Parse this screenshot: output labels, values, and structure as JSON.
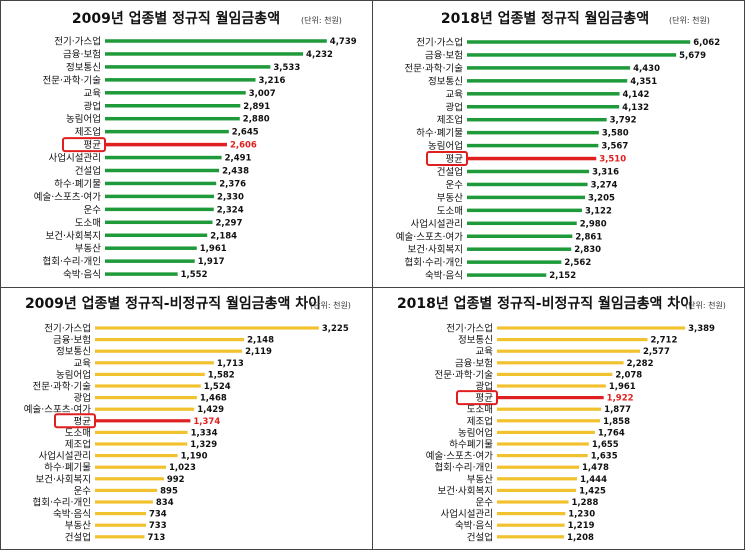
{
  "chart_data": [
    {
      "type": "bar",
      "title": "2009년 업종별 정규직 월임금총액",
      "unit": "(단위: 천원)",
      "color": "#1f9a3a",
      "highlight_color": "#e02020",
      "highlight": "평균",
      "xlim": [
        0,
        5000
      ],
      "categories": [
        "전기·가스업",
        "금융·보험",
        "정보통신",
        "전문·과학·기술",
        "교육",
        "광업",
        "농림어업",
        "제조업",
        "평균",
        "사업시설관리",
        "건설업",
        "하수·폐기물",
        "예술·스포츠·여가",
        "운수",
        "도소매",
        "보건·사회복지",
        "부동산",
        "협회·수리·개인",
        "숙박·음식"
      ],
      "values": [
        4739,
        4232,
        3533,
        3216,
        3007,
        2891,
        2880,
        2645,
        2606,
        2491,
        2438,
        2376,
        2330,
        2324,
        2297,
        2184,
        1961,
        1917,
        1552
      ],
      "labels": [
        "4,739",
        "4,232",
        "3,533",
        "3,216",
        "3,007",
        "2,891",
        "2,880",
        "2,645",
        "2,606",
        "2,491",
        "2,438",
        "2,376",
        "2,330",
        "2,324",
        "2,297",
        "2,184",
        "1,961",
        "1,917",
        "1,552"
      ]
    },
    {
      "type": "bar",
      "title": "2018년 업종별 정규직 월임금총액",
      "unit": "(단위: 천원)",
      "color": "#1f9a3a",
      "highlight_color": "#e02020",
      "highlight": "평균",
      "xlim": [
        0,
        6300
      ],
      "categories": [
        "전기·가스업",
        "금융·보험",
        "전문·과학·기술",
        "정보통신",
        "교육",
        "광업",
        "제조업",
        "하수·폐기물",
        "농림어업",
        "평균",
        "건설업",
        "운수",
        "부동산",
        "도소매",
        "사업시설관리",
        "예술·스포츠·여가",
        "보건·사회복지",
        "협회·수리·개인",
        "숙박·음식"
      ],
      "values": [
        6062,
        5679,
        4430,
        4351,
        4142,
        4132,
        3792,
        3580,
        3567,
        3510,
        3316,
        3274,
        3205,
        3122,
        2980,
        2861,
        2830,
        2562,
        2152
      ],
      "labels": [
        "6,062",
        "5,679",
        "4,430",
        "4,351",
        "4,142",
        "4,132",
        "3,792",
        "3,580",
        "3,567",
        "3,510",
        "3,316",
        "3,274",
        "3,205",
        "3,122",
        "2,980",
        "2,861",
        "2,830",
        "2,562",
        "2,152"
      ]
    },
    {
      "type": "bar",
      "title": "2009년 업종별 정규직-비정규직 월임금총액 차이",
      "unit": "(단위: 천원)",
      "color": "#f2c12e",
      "highlight_color": "#e02020",
      "highlight": "평균",
      "xlim": [
        0,
        3400
      ],
      "categories": [
        "전기·가스업",
        "금융·보험",
        "정보통신",
        "교육",
        "농림어업",
        "전문·과학·기술",
        "광업",
        "예술·스포츠·여가",
        "평균",
        "도소매",
        "제조업",
        "사업시설관리",
        "하수·폐기물",
        "보건·사회복지",
        "운수",
        "협회·수리·개인",
        "숙박·음식",
        "부동산",
        "건설업"
      ],
      "values": [
        3225,
        2148,
        2119,
        1713,
        1582,
        1524,
        1468,
        1429,
        1374,
        1334,
        1329,
        1190,
        1023,
        992,
        895,
        834,
        734,
        733,
        713
      ],
      "labels": [
        "3,225",
        "2,148",
        "2,119",
        "1,713",
        "1,582",
        "1,524",
        "1,468",
        "1,429",
        "1,374",
        "1,334",
        "1,329",
        "1,190",
        "1,023",
        "992",
        "895",
        "834",
        "734",
        "733",
        "713"
      ]
    },
    {
      "type": "bar",
      "title": "2018년 업종별 정규직-비정규직 월임금총액 차이",
      "unit": "(단위: 천원)",
      "color": "#f2c12e",
      "highlight_color": "#e02020",
      "highlight": "평균",
      "xlim": [
        0,
        3550
      ],
      "categories": [
        "전기·가스업",
        "정보통신",
        "교육",
        "금융·보험",
        "전문·과학·기술",
        "광업",
        "평균",
        "도소매",
        "제조업",
        "농림어업",
        "하수폐기물",
        "예술·스포츠·여가",
        "협회·수리·개인",
        "부동산",
        "보건·사회복지",
        "운수",
        "사업시설관리",
        "숙박·음식",
        "건설업"
      ],
      "values": [
        3389,
        2712,
        2577,
        2282,
        2078,
        1961,
        1922,
        1877,
        1858,
        1764,
        1655,
        1635,
        1478,
        1444,
        1425,
        1288,
        1230,
        1219,
        1208
      ],
      "labels": [
        "3,389",
        "2,712",
        "2,577",
        "2,282",
        "2,078",
        "1,961",
        "1,922",
        "1,877",
        "1,858",
        "1,764",
        "1,655",
        "1,635",
        "1,478",
        "1,444",
        "1,425",
        "1,288",
        "1,230",
        "1,219",
        "1,208"
      ]
    }
  ]
}
